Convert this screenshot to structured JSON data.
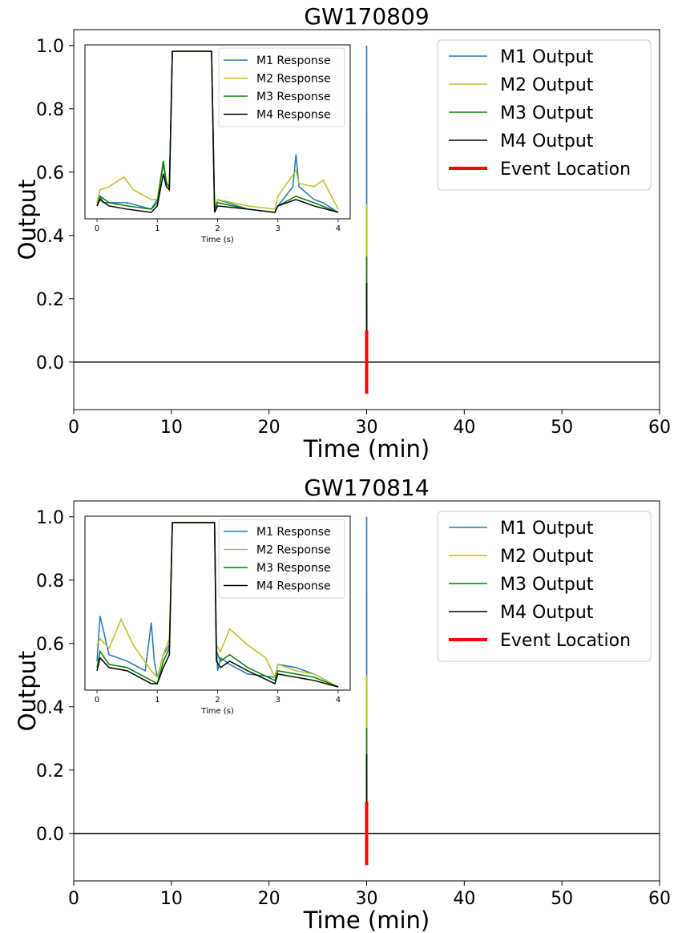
{
  "chart_data": [
    {
      "type": "line",
      "title": "GW170809",
      "xlabel": "Time (min)",
      "ylabel": "Output",
      "xlim": [
        0,
        60
      ],
      "ylim": [
        -0.15,
        1.05
      ],
      "xticks": [
        0,
        10,
        20,
        30,
        40,
        50,
        60
      ],
      "yticks": [
        0.0,
        0.2,
        0.4,
        0.6,
        0.8,
        1.0
      ],
      "legend_position": "top-right",
      "series": [
        {
          "name": "M1 Output",
          "color": "#1f77b4",
          "x": [
            0,
            29.99,
            30,
            30,
            30.01,
            60
          ],
          "y": [
            0,
            0,
            0,
            1.0,
            0,
            0
          ]
        },
        {
          "name": "M2 Output",
          "color": "#bcbd22",
          "x": [
            0,
            29.99,
            30,
            30,
            30.01,
            60
          ],
          "y": [
            0,
            0,
            0,
            0.5,
            0,
            0
          ]
        },
        {
          "name": "M3 Output",
          "color": "#008000",
          "x": [
            0,
            29.99,
            30,
            30,
            30.01,
            60
          ],
          "y": [
            0,
            0,
            0,
            0.333,
            0,
            0
          ]
        },
        {
          "name": "M4 Output",
          "color": "#000000",
          "x": [
            0,
            29.99,
            30,
            30,
            30.01,
            60
          ],
          "y": [
            0,
            0,
            0,
            0.25,
            0,
            0
          ]
        },
        {
          "name": "Event Location",
          "color": "#ff0000",
          "x": [
            30,
            30
          ],
          "y": [
            -0.1,
            0.1
          ]
        }
      ],
      "inset": {
        "xlabel": "Time (s)",
        "xlim": [
          -0.2,
          4.2
        ],
        "ylim": [
          0.46,
          1.0
        ],
        "xticks": [
          0,
          1,
          2,
          3,
          4
        ],
        "legend_position": "top-right",
        "series": [
          {
            "name": "M1 Response",
            "color": "#1f77b4",
            "x": [
              0,
              0.05,
              0.1,
              0.5,
              0.9,
              1.0,
              1.1,
              1.15,
              1.2,
              1.25,
              1.3,
              1.9,
              1.95,
              2.0,
              2.5,
              2.95,
              3.0,
              3.25,
              3.3,
              3.35,
              3.6,
              3.75,
              4.0
            ],
            "y": [
              0.5,
              0.53,
              0.51,
              0.51,
              0.49,
              0.52,
              0.63,
              0.57,
              0.56,
              0.98,
              0.98,
              0.98,
              0.49,
              0.52,
              0.49,
              0.48,
              0.5,
              0.56,
              0.66,
              0.56,
              0.52,
              0.51,
              0.48
            ]
          },
          {
            "name": "M2 Response",
            "color": "#bcbd22",
            "x": [
              0,
              0.05,
              0.2,
              0.45,
              0.6,
              0.9,
              1.0,
              1.1,
              1.15,
              1.2,
              1.25,
              1.3,
              1.9,
              1.95,
              2.0,
              2.5,
              2.95,
              3.0,
              3.3,
              3.35,
              3.6,
              3.75,
              4.0
            ],
            "y": [
              0.51,
              0.55,
              0.56,
              0.59,
              0.55,
              0.52,
              0.52,
              0.64,
              0.58,
              0.55,
              0.98,
              0.98,
              0.98,
              0.5,
              0.52,
              0.5,
              0.49,
              0.53,
              0.61,
              0.57,
              0.56,
              0.58,
              0.49
            ]
          },
          {
            "name": "M3 Response",
            "color": "#008000",
            "x": [
              0,
              0.05,
              0.2,
              0.5,
              0.9,
              1.0,
              1.1,
              1.15,
              1.2,
              1.25,
              1.3,
              1.9,
              1.95,
              2.0,
              2.5,
              2.95,
              3.0,
              3.3,
              3.6,
              4.0
            ],
            "y": [
              0.5,
              0.53,
              0.51,
              0.5,
              0.49,
              0.51,
              0.64,
              0.57,
              0.56,
              0.98,
              0.98,
              0.98,
              0.49,
              0.51,
              0.49,
              0.48,
              0.5,
              0.53,
              0.51,
              0.48
            ]
          },
          {
            "name": "M4 Response",
            "color": "#000000",
            "x": [
              0,
              0.05,
              0.2,
              0.5,
              0.9,
              1.0,
              1.1,
              1.15,
              1.2,
              1.25,
              1.3,
              1.9,
              1.95,
              2.0,
              2.5,
              2.95,
              3.0,
              3.3,
              3.6,
              4.0
            ],
            "y": [
              0.5,
              0.52,
              0.5,
              0.49,
              0.48,
              0.5,
              0.6,
              0.56,
              0.55,
              0.98,
              0.98,
              0.98,
              0.48,
              0.5,
              0.49,
              0.48,
              0.5,
              0.52,
              0.5,
              0.48
            ]
          }
        ]
      }
    },
    {
      "type": "line",
      "title": "GW170814",
      "xlabel": "Time (min)",
      "ylabel": "Output",
      "xlim": [
        0,
        60
      ],
      "ylim": [
        -0.15,
        1.05
      ],
      "xticks": [
        0,
        10,
        20,
        30,
        40,
        50,
        60
      ],
      "yticks": [
        0.0,
        0.2,
        0.4,
        0.6,
        0.8,
        1.0
      ],
      "legend_position": "top-right",
      "series": [
        {
          "name": "M1 Output",
          "color": "#1f77b4",
          "x": [
            0,
            29.99,
            30,
            30,
            30.01,
            60
          ],
          "y": [
            0,
            0,
            0,
            1.0,
            0,
            0
          ]
        },
        {
          "name": "M2 Output",
          "color": "#bcbd22",
          "x": [
            0,
            29.99,
            30,
            30,
            30.01,
            60
          ],
          "y": [
            0,
            0,
            0,
            0.5,
            0,
            0
          ]
        },
        {
          "name": "M3 Output",
          "color": "#008000",
          "x": [
            0,
            29.99,
            30,
            30,
            30.01,
            60
          ],
          "y": [
            0,
            0,
            0,
            0.333,
            0,
            0
          ]
        },
        {
          "name": "M4 Output",
          "color": "#000000",
          "x": [
            0,
            29.99,
            30,
            30,
            30.01,
            60
          ],
          "y": [
            0,
            0,
            0,
            0.25,
            0,
            0
          ]
        },
        {
          "name": "Event Location",
          "color": "#ff0000",
          "x": [
            30,
            30
          ],
          "y": [
            -0.1,
            0.1
          ]
        }
      ],
      "inset": {
        "xlabel": "Time (s)",
        "xlim": [
          -0.2,
          4.2
        ],
        "ylim": [
          0.46,
          1.0
        ],
        "xticks": [
          0,
          1,
          2,
          3,
          4
        ],
        "legend_position": "top-right",
        "series": [
          {
            "name": "M1 Response",
            "color": "#1f77b4",
            "x": [
              0,
              0.05,
              0.2,
              0.5,
              0.8,
              0.9,
              0.95,
              1.0,
              1.1,
              1.2,
              1.25,
              1.3,
              1.95,
              1.98,
              2.0,
              2.05,
              2.2,
              2.5,
              2.95,
              3.0,
              3.3,
              3.6,
              4.0
            ],
            "y": [
              0.55,
              0.69,
              0.57,
              0.55,
              0.52,
              0.67,
              0.55,
              0.5,
              0.57,
              0.6,
              0.98,
              0.98,
              0.98,
              0.6,
              0.52,
              0.56,
              0.54,
              0.51,
              0.5,
              0.54,
              0.53,
              0.51,
              0.47
            ]
          },
          {
            "name": "M2 Response",
            "color": "#bcbd22",
            "x": [
              0,
              0.05,
              0.2,
              0.4,
              0.6,
              0.9,
              1.0,
              1.1,
              1.2,
              1.25,
              1.3,
              1.95,
              1.98,
              2.05,
              2.2,
              2.5,
              2.8,
              2.95,
              3.0,
              3.3,
              3.6,
              4.0
            ],
            "y": [
              0.6,
              0.62,
              0.59,
              0.68,
              0.6,
              0.52,
              0.5,
              0.57,
              0.62,
              0.98,
              0.98,
              0.98,
              0.6,
              0.58,
              0.65,
              0.6,
              0.56,
              0.5,
              0.54,
              0.52,
              0.51,
              0.47
            ]
          },
          {
            "name": "M3 Response",
            "color": "#008000",
            "x": [
              0,
              0.05,
              0.2,
              0.5,
              0.9,
              1.0,
              1.1,
              1.2,
              1.25,
              1.3,
              1.95,
              1.98,
              2.05,
              2.2,
              2.5,
              2.95,
              3.0,
              3.3,
              3.6,
              4.0
            ],
            "y": [
              0.53,
              0.58,
              0.54,
              0.53,
              0.49,
              0.48,
              0.55,
              0.59,
              0.98,
              0.98,
              0.98,
              0.58,
              0.55,
              0.57,
              0.53,
              0.49,
              0.52,
              0.51,
              0.5,
              0.47
            ]
          },
          {
            "name": "M4 Response",
            "color": "#000000",
            "x": [
              0,
              0.05,
              0.2,
              0.5,
              0.9,
              1.0,
              1.1,
              1.2,
              1.25,
              1.3,
              1.95,
              1.98,
              2.05,
              2.2,
              2.5,
              2.95,
              3.0,
              3.3,
              3.6,
              4.0
            ],
            "y": [
              0.52,
              0.56,
              0.53,
              0.52,
              0.48,
              0.48,
              0.53,
              0.57,
              0.98,
              0.98,
              0.98,
              0.55,
              0.53,
              0.55,
              0.52,
              0.48,
              0.51,
              0.5,
              0.49,
              0.47
            ]
          }
        ]
      }
    }
  ]
}
